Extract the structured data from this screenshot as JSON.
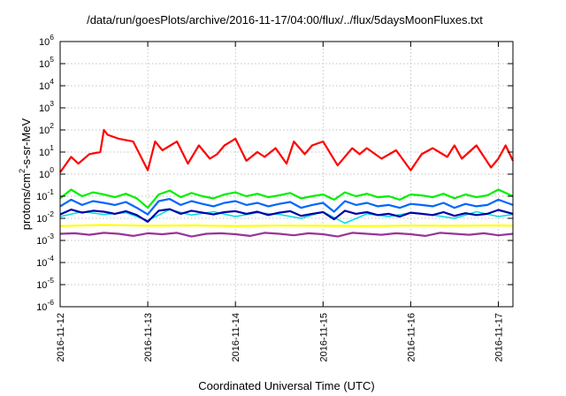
{
  "chart_data": {
    "type": "line",
    "title": "/data/run/goesPlots/archive/2016-11-17/04:00/flux/../flux/5daysMoonFluxes.txt",
    "xlabel": "Coordinated Universal Time (UTC)",
    "ylabel": "protons/cm2-s-sr-MeV",
    "ylabel_parts": {
      "prefix": "protons/cm",
      "sup": "2",
      "suffix": "-s-sr-MeV"
    },
    "y_scale": "log",
    "ylim": [
      1e-06,
      1000000.0
    ],
    "y_ticks": [
      {
        "value": 1e-06,
        "base": "10",
        "exp": "-6"
      },
      {
        "value": 1e-05,
        "base": "10",
        "exp": "-5"
      },
      {
        "value": 0.0001,
        "base": "10",
        "exp": "-4"
      },
      {
        "value": 0.001,
        "base": "10",
        "exp": "-3"
      },
      {
        "value": 0.01,
        "base": "10",
        "exp": "-2"
      },
      {
        "value": 0.1,
        "base": "10",
        "exp": "-1"
      },
      {
        "value": 1,
        "base": "10",
        "exp": "0"
      },
      {
        "value": 10,
        "base": "10",
        "exp": "1"
      },
      {
        "value": 100,
        "base": "10",
        "exp": "2"
      },
      {
        "value": 1000,
        "base": "10",
        "exp": "3"
      },
      {
        "value": 10000,
        "base": "10",
        "exp": "4"
      },
      {
        "value": 100000,
        "base": "10",
        "exp": "5"
      },
      {
        "value": 1000000,
        "base": "10",
        "exp": "6"
      }
    ],
    "xlim": [
      "2016-11-12T00:00",
      "2016-11-17T04:00"
    ],
    "x_ticks": [
      "2016-11-12",
      "2016-11-13",
      "2016-11-14",
      "2016-11-15",
      "2016-11-16",
      "2016-11-17"
    ],
    "grid": true,
    "legend": "none",
    "series": [
      {
        "color": "#ff0000",
        "width": 2.2,
        "x": [
          "2016-11-12T00:00",
          "2016-11-12T03:00",
          "2016-11-12T05:00",
          "2016-11-12T08:00",
          "2016-11-12T11:00",
          "2016-11-12T12:00",
          "2016-11-12T13:00",
          "2016-11-12T16:00",
          "2016-11-12T20:00",
          "2016-11-13T00:00",
          "2016-11-13T02:00",
          "2016-11-13T04:00",
          "2016-11-13T08:00",
          "2016-11-13T11:00",
          "2016-11-13T14:00",
          "2016-11-13T17:00",
          "2016-11-13T19:00",
          "2016-11-13T21:00",
          "2016-11-14T00:00",
          "2016-11-14T03:00",
          "2016-11-14T06:00",
          "2016-11-14T08:00",
          "2016-11-14T11:00",
          "2016-11-14T14:00",
          "2016-11-14T16:00",
          "2016-11-14T19:00",
          "2016-11-14T21:00",
          "2016-11-15T00:00",
          "2016-11-15T04:00",
          "2016-11-15T08:00",
          "2016-11-15T10:00",
          "2016-11-15T12:00",
          "2016-11-15T16:00",
          "2016-11-15T20:00",
          "2016-11-16T00:00",
          "2016-11-16T03:00",
          "2016-11-16T06:00",
          "2016-11-16T10:00",
          "2016-11-16T12:00",
          "2016-11-16T14:00",
          "2016-11-16T18:00",
          "2016-11-16T22:00",
          "2016-11-17T00:00",
          "2016-11-17T02:00",
          "2016-11-17T04:00"
        ],
        "values": [
          1.2,
          6,
          3,
          8,
          10,
          100,
          60,
          40,
          30,
          1.5,
          30,
          12,
          30,
          3,
          20,
          5,
          8,
          20,
          40,
          4,
          10,
          6,
          15,
          3,
          30,
          8,
          20,
          30,
          2.5,
          15,
          8,
          15,
          5,
          12,
          1.5,
          8,
          15,
          6,
          20,
          5,
          20,
          2,
          5,
          20,
          4
        ]
      },
      {
        "color": "#00ee00",
        "width": 2.2,
        "x": [
          "2016-11-12T00:00",
          "2016-11-12T03:00",
          "2016-11-12T06:00",
          "2016-11-12T09:00",
          "2016-11-12T12:00",
          "2016-11-12T15:00",
          "2016-11-12T18:00",
          "2016-11-12T21:00",
          "2016-11-13T00:00",
          "2016-11-13T03:00",
          "2016-11-13T06:00",
          "2016-11-13T09:00",
          "2016-11-13T12:00",
          "2016-11-13T15:00",
          "2016-11-13T18:00",
          "2016-11-13T21:00",
          "2016-11-14T00:00",
          "2016-11-14T03:00",
          "2016-11-14T06:00",
          "2016-11-14T09:00",
          "2016-11-14T12:00",
          "2016-11-14T15:00",
          "2016-11-14T18:00",
          "2016-11-14T21:00",
          "2016-11-15T00:00",
          "2016-11-15T03:00",
          "2016-11-15T06:00",
          "2016-11-15T09:00",
          "2016-11-15T12:00",
          "2016-11-15T15:00",
          "2016-11-15T18:00",
          "2016-11-15T21:00",
          "2016-11-16T00:00",
          "2016-11-16T03:00",
          "2016-11-16T06:00",
          "2016-11-16T09:00",
          "2016-11-16T12:00",
          "2016-11-16T15:00",
          "2016-11-16T18:00",
          "2016-11-16T21:00",
          "2016-11-17T00:00",
          "2016-11-17T04:00"
        ],
        "values": [
          0.08,
          0.2,
          0.1,
          0.15,
          0.12,
          0.09,
          0.13,
          0.08,
          0.03,
          0.12,
          0.18,
          0.09,
          0.14,
          0.1,
          0.08,
          0.12,
          0.15,
          0.1,
          0.13,
          0.09,
          0.11,
          0.14,
          0.08,
          0.1,
          0.12,
          0.07,
          0.15,
          0.1,
          0.13,
          0.09,
          0.1,
          0.07,
          0.12,
          0.11,
          0.09,
          0.13,
          0.08,
          0.12,
          0.09,
          0.11,
          0.2,
          0.1
        ]
      },
      {
        "color": "#00dddd",
        "width": 1.5,
        "x": [
          "2016-11-12T00:00",
          "2016-11-12T06:00",
          "2016-11-12T12:00",
          "2016-11-12T18:00",
          "2016-11-13T00:00",
          "2016-11-13T06:00",
          "2016-11-13T12:00",
          "2016-11-13T18:00",
          "2016-11-14T00:00",
          "2016-11-14T06:00",
          "2016-11-14T12:00",
          "2016-11-14T18:00",
          "2016-11-15T00:00",
          "2016-11-15T06:00",
          "2016-11-15T12:00",
          "2016-11-15T18:00",
          "2016-11-16T00:00",
          "2016-11-16T06:00",
          "2016-11-16T12:00",
          "2016-11-16T18:00",
          "2016-11-17T00:00",
          "2016-11-17T04:00"
        ],
        "values": [
          0.012,
          0.02,
          0.015,
          0.018,
          0.008,
          0.025,
          0.014,
          0.02,
          0.012,
          0.018,
          0.015,
          0.01,
          0.02,
          0.006,
          0.016,
          0.012,
          0.018,
          0.014,
          0.01,
          0.02,
          0.012,
          0.015
        ]
      },
      {
        "color": "#0066ff",
        "width": 2.2,
        "x": [
          "2016-11-12T00:00",
          "2016-11-12T03:00",
          "2016-11-12T06:00",
          "2016-11-12T09:00",
          "2016-11-12T12:00",
          "2016-11-12T15:00",
          "2016-11-12T18:00",
          "2016-11-12T21:00",
          "2016-11-13T00:00",
          "2016-11-13T03:00",
          "2016-11-13T06:00",
          "2016-11-13T09:00",
          "2016-11-13T12:00",
          "2016-11-13T15:00",
          "2016-11-13T18:00",
          "2016-11-13T21:00",
          "2016-11-14T00:00",
          "2016-11-14T03:00",
          "2016-11-14T06:00",
          "2016-11-14T09:00",
          "2016-11-14T12:00",
          "2016-11-14T15:00",
          "2016-11-14T18:00",
          "2016-11-14T21:00",
          "2016-11-15T00:00",
          "2016-11-15T03:00",
          "2016-11-15T06:00",
          "2016-11-15T09:00",
          "2016-11-15T12:00",
          "2016-11-15T15:00",
          "2016-11-15T18:00",
          "2016-11-15T21:00",
          "2016-11-16T00:00",
          "2016-11-16T03:00",
          "2016-11-16T06:00",
          "2016-11-16T09:00",
          "2016-11-16T12:00",
          "2016-11-16T15:00",
          "2016-11-16T18:00",
          "2016-11-16T21:00",
          "2016-11-17T00:00",
          "2016-11-17T04:00"
        ],
        "values": [
          0.035,
          0.07,
          0.04,
          0.06,
          0.05,
          0.04,
          0.055,
          0.03,
          0.015,
          0.06,
          0.075,
          0.04,
          0.06,
          0.045,
          0.035,
          0.05,
          0.06,
          0.04,
          0.05,
          0.035,
          0.045,
          0.055,
          0.03,
          0.04,
          0.05,
          0.02,
          0.06,
          0.04,
          0.05,
          0.035,
          0.04,
          0.03,
          0.045,
          0.04,
          0.035,
          0.05,
          0.03,
          0.045,
          0.035,
          0.04,
          0.07,
          0.04
        ]
      },
      {
        "color": "#0000aa",
        "width": 2.2,
        "x": [
          "2016-11-12T00:00",
          "2016-11-12T03:00",
          "2016-11-12T06:00",
          "2016-11-12T09:00",
          "2016-11-12T12:00",
          "2016-11-12T15:00",
          "2016-11-12T18:00",
          "2016-11-12T21:00",
          "2016-11-13T00:00",
          "2016-11-13T03:00",
          "2016-11-13T06:00",
          "2016-11-13T09:00",
          "2016-11-13T12:00",
          "2016-11-13T15:00",
          "2016-11-13T18:00",
          "2016-11-13T21:00",
          "2016-11-14T00:00",
          "2016-11-14T03:00",
          "2016-11-14T06:00",
          "2016-11-14T09:00",
          "2016-11-14T12:00",
          "2016-11-14T15:00",
          "2016-11-14T18:00",
          "2016-11-14T21:00",
          "2016-11-15T00:00",
          "2016-11-15T03:00",
          "2016-11-15T06:00",
          "2016-11-15T09:00",
          "2016-11-15T12:00",
          "2016-11-15T15:00",
          "2016-11-15T18:00",
          "2016-11-15T21:00",
          "2016-11-16T00:00",
          "2016-11-16T03:00",
          "2016-11-16T06:00",
          "2016-11-16T09:00",
          "2016-11-16T12:00",
          "2016-11-16T15:00",
          "2016-11-16T18:00",
          "2016-11-16T21:00",
          "2016-11-17T00:00",
          "2016-11-17T04:00"
        ],
        "values": [
          0.015,
          0.025,
          0.018,
          0.022,
          0.02,
          0.016,
          0.021,
          0.014,
          0.007,
          0.022,
          0.026,
          0.016,
          0.022,
          0.018,
          0.015,
          0.019,
          0.021,
          0.016,
          0.02,
          0.014,
          0.018,
          0.021,
          0.013,
          0.016,
          0.019,
          0.009,
          0.022,
          0.016,
          0.019,
          0.014,
          0.016,
          0.012,
          0.018,
          0.016,
          0.014,
          0.019,
          0.013,
          0.017,
          0.014,
          0.016,
          0.024,
          0.016
        ]
      },
      {
        "color": "#ffff00",
        "width": 2.2,
        "x": [
          "2016-11-12T00:00",
          "2016-11-12T12:00",
          "2016-11-13T00:00",
          "2016-11-13T12:00",
          "2016-11-14T00:00",
          "2016-11-14T12:00",
          "2016-11-15T00:00",
          "2016-11-15T12:00",
          "2016-11-16T00:00",
          "2016-11-16T12:00",
          "2016-11-17T00:00",
          "2016-11-17T04:00"
        ],
        "values": [
          0.0045,
          0.005,
          0.0046,
          0.0048,
          0.0045,
          0.0047,
          0.0046,
          0.0045,
          0.0047,
          0.0046,
          0.0048,
          0.0046
        ]
      },
      {
        "color": "#993399",
        "width": 2.2,
        "x": [
          "2016-11-12T00:00",
          "2016-11-12T04:00",
          "2016-11-12T08:00",
          "2016-11-12T12:00",
          "2016-11-12T16:00",
          "2016-11-12T20:00",
          "2016-11-13T00:00",
          "2016-11-13T04:00",
          "2016-11-13T08:00",
          "2016-11-13T12:00",
          "2016-11-13T16:00",
          "2016-11-13T20:00",
          "2016-11-14T00:00",
          "2016-11-14T04:00",
          "2016-11-14T08:00",
          "2016-11-14T12:00",
          "2016-11-14T16:00",
          "2016-11-14T20:00",
          "2016-11-15T00:00",
          "2016-11-15T04:00",
          "2016-11-15T08:00",
          "2016-11-15T12:00",
          "2016-11-15T16:00",
          "2016-11-15T20:00",
          "2016-11-16T00:00",
          "2016-11-16T04:00",
          "2016-11-16T08:00",
          "2016-11-16T12:00",
          "2016-11-16T16:00",
          "2016-11-16T20:00",
          "2016-11-17T00:00",
          "2016-11-17T04:00"
        ],
        "values": [
          0.002,
          0.0021,
          0.0018,
          0.0022,
          0.002,
          0.0016,
          0.0021,
          0.0019,
          0.0022,
          0.0015,
          0.002,
          0.0021,
          0.0019,
          0.0016,
          0.0022,
          0.002,
          0.0017,
          0.0021,
          0.0019,
          0.0015,
          0.0022,
          0.002,
          0.0018,
          0.0021,
          0.0019,
          0.0016,
          0.0022,
          0.002,
          0.0018,
          0.0021,
          0.0017,
          0.002
        ]
      }
    ]
  }
}
